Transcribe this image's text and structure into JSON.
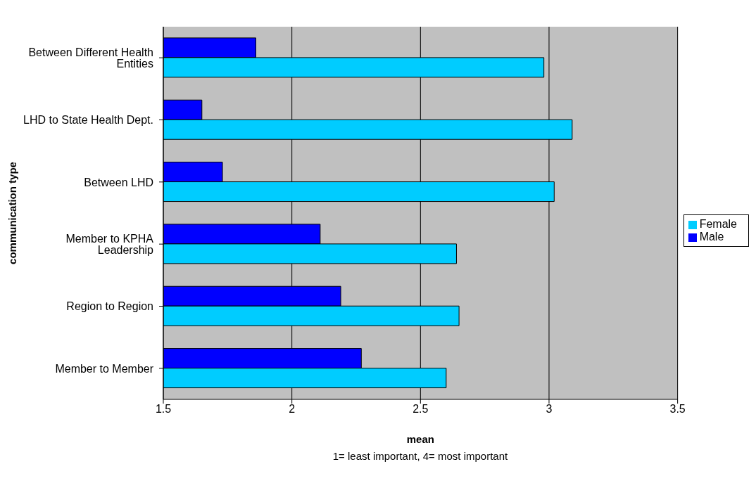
{
  "chart_data": {
    "type": "bar",
    "orientation": "horizontal",
    "xlabel": "mean",
    "ylabel": "communication type",
    "annotations": [
      "1= least important, 4= most important"
    ],
    "categories": [
      "Between Different Health Entities",
      "LHD to State Health Dept.",
      "Between LHD",
      "Member to KPHA Leadership",
      "Region to Region",
      "Member to Member"
    ],
    "series": [
      {
        "name": "Male",
        "color": "#0000ff",
        "values": [
          1.86,
          1.65,
          1.73,
          2.11,
          2.19,
          2.27
        ]
      },
      {
        "name": "Female",
        "color": "#00ccff",
        "values": [
          2.98,
          3.09,
          3.02,
          2.64,
          2.65,
          2.6
        ]
      }
    ],
    "xlim": [
      1.5,
      3.5
    ],
    "xticks": [
      1.5,
      2,
      2.5,
      3,
      3.5
    ],
    "grid": "x",
    "legend": "right"
  }
}
